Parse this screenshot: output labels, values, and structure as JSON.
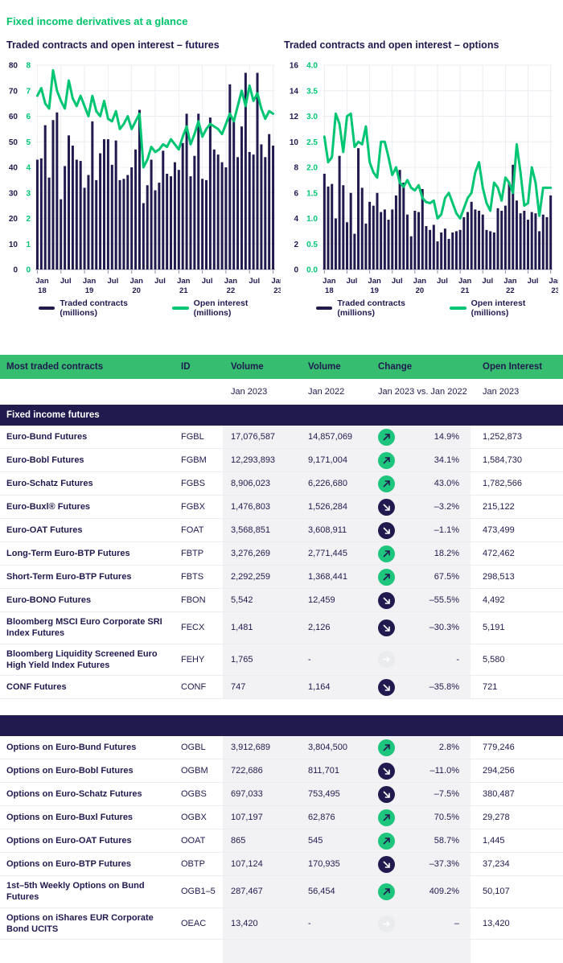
{
  "page": {
    "title": "Fixed income derivatives at a glance"
  },
  "colors": {
    "navy": "#201A4F",
    "green_line": "#00C573",
    "title_green": "#00C56B",
    "header_green": "#36BD70",
    "icon_up_green": "#1EC57C",
    "icon_flat_gray": "#E9EBEC",
    "row_band_gray": "#F2F2F4",
    "grid_gray": "#ECECF2"
  },
  "chart_data": [
    {
      "type": "bar",
      "title": "Traded contracts and open interest – futures",
      "x_months": "Jan 2018 – Jan 2023 (monthly)",
      "x_tick_labels": [
        {
          "i": 0,
          "l1": "Jan",
          "l2": "18"
        },
        {
          "i": 6,
          "l1": "Jul"
        },
        {
          "i": 12,
          "l1": "Jan",
          "l2": "19"
        },
        {
          "i": 18,
          "l1": "Jul"
        },
        {
          "i": 24,
          "l1": "Jan",
          "l2": "20"
        },
        {
          "i": 30,
          "l1": "Jul"
        },
        {
          "i": 36,
          "l1": "Jan",
          "l2": "21"
        },
        {
          "i": 42,
          "l1": "Jul"
        },
        {
          "i": 48,
          "l1": "Jan",
          "l2": "22"
        },
        {
          "i": 54,
          "l1": "Jul"
        },
        {
          "i": 60,
          "l1": "Jan",
          "l2": "23"
        }
      ],
      "left_axis": {
        "min": 0,
        "max": 80,
        "step": 10,
        "labels": [
          "0",
          "10",
          "20",
          "30",
          "40",
          "50",
          "60",
          "70",
          "80"
        ]
      },
      "right_axis": {
        "min": 0,
        "max": 8,
        "step": 1,
        "labels": [
          "0",
          "1",
          "2",
          "3",
          "4",
          "5",
          "6",
          "7",
          "8"
        ]
      },
      "series": [
        {
          "name": "Traded contracts (millions)",
          "kind": "bar",
          "axis": "left",
          "values": [
            43,
            43.5,
            56.5,
            36,
            58.5,
            61.5,
            27.5,
            40.5,
            52.5,
            48.5,
            43,
            42.5,
            32,
            37,
            58,
            35,
            45.5,
            51,
            51,
            41,
            50.5,
            35,
            35.5,
            37,
            40,
            47,
            62.5,
            26,
            33,
            43,
            31,
            34,
            46.5,
            37.5,
            36.5,
            42,
            39,
            49.5,
            61,
            36.5,
            44.5,
            61,
            35.5,
            35,
            59.5,
            47,
            45,
            42,
            40,
            72.5,
            58,
            44,
            56,
            77,
            46,
            45,
            77,
            49,
            44,
            53,
            48.5
          ]
        },
        {
          "name": "Open interest (millions)",
          "kind": "line",
          "axis": "right",
          "values": [
            6.8,
            7.1,
            6.5,
            6.3,
            7.8,
            7.0,
            6.6,
            6.3,
            7.4,
            6.7,
            6.4,
            6.8,
            6.4,
            6.0,
            6.8,
            6.2,
            6.0,
            6.6,
            5.9,
            5.8,
            6.2,
            5.5,
            5.7,
            6.0,
            5.5,
            5.8,
            6.1,
            4.0,
            4.3,
            4.8,
            4.6,
            4.7,
            4.9,
            4.8,
            5.1,
            4.9,
            4.7,
            5.2,
            5.6,
            4.9,
            5.3,
            5.8,
            5.2,
            5.5,
            5.7,
            5.6,
            5.5,
            5.3,
            5.7,
            6.1,
            5.8,
            6.4,
            7.0,
            6.4,
            7.2,
            6.6,
            6.9,
            6.3,
            5.9,
            6.2,
            6.1
          ]
        }
      ]
    },
    {
      "type": "bar",
      "title": "Traded contracts and open interest – options",
      "x_months": "Jan 2018 – Jan 2023 (monthly)",
      "x_tick_labels": [
        {
          "i": 0,
          "l1": "Jan",
          "l2": "18"
        },
        {
          "i": 6,
          "l1": "Jul"
        },
        {
          "i": 12,
          "l1": "Jan",
          "l2": "19"
        },
        {
          "i": 18,
          "l1": "Jul"
        },
        {
          "i": 24,
          "l1": "Jan",
          "l2": "20"
        },
        {
          "i": 30,
          "l1": "Jul"
        },
        {
          "i": 36,
          "l1": "Jan",
          "l2": "21"
        },
        {
          "i": 42,
          "l1": "Jul"
        },
        {
          "i": 48,
          "l1": "Jan",
          "l2": "22"
        },
        {
          "i": 54,
          "l1": "Jul"
        },
        {
          "i": 60,
          "l1": "Jan",
          "l2": "23"
        }
      ],
      "left_axis": {
        "min": 0,
        "max": 16,
        "step": 2,
        "labels": [
          "0",
          "2",
          "4",
          "6",
          "8",
          "10",
          "12",
          "14",
          "16"
        ]
      },
      "right_axis": {
        "min": 0,
        "max": 4,
        "step": 0.5,
        "labels": [
          "0.0",
          "0.5",
          "1.0",
          "1.5",
          "2.0",
          "2.5",
          "3.0",
          "3.5",
          "4.0"
        ]
      },
      "series": [
        {
          "name": "Traded contracts (millions)",
          "kind": "bar",
          "axis": "left",
          "values": [
            7.5,
            6.5,
            6.7,
            4.0,
            8.9,
            6.6,
            3.7,
            6.0,
            2.8,
            9.5,
            6.4,
            3.6,
            5.3,
            5.0,
            6.0,
            4.5,
            4.7,
            3.9,
            4.7,
            5.8,
            7.8,
            6.8,
            4.3,
            2.6,
            4.6,
            4.5,
            6.3,
            3.4,
            3.1,
            3.5,
            2.2,
            2.9,
            3.2,
            2.4,
            2.9,
            3.0,
            3.1,
            4.1,
            4.5,
            5.3,
            4.7,
            4.6,
            4.3,
            3.1,
            3.0,
            2.9,
            4.8,
            4.6,
            5.0,
            6.8,
            8.2,
            5.4,
            4.4,
            4.6,
            3.9,
            4.5,
            4.4,
            3.0,
            4.3,
            4.1,
            5.8
          ]
        },
        {
          "name": "Open interest (millions)",
          "kind": "line",
          "axis": "right",
          "values": [
            2.6,
            2.1,
            2.2,
            3.05,
            2.85,
            2.3,
            3.0,
            3.05,
            2.4,
            2.5,
            2.45,
            2.8,
            2.1,
            1.9,
            1.8,
            2.5,
            2.5,
            2.2,
            1.85,
            2.0,
            1.7,
            1.62,
            1.75,
            1.6,
            1.55,
            1.65,
            1.4,
            1.32,
            1.3,
            1.35,
            1.0,
            1.08,
            1.4,
            1.5,
            1.3,
            1.1,
            1.0,
            1.2,
            1.4,
            1.5,
            1.9,
            2.1,
            1.6,
            1.3,
            1.15,
            1.7,
            1.6,
            1.35,
            1.8,
            1.7,
            1.5,
            2.45,
            1.9,
            1.25,
            1.3,
            2.0,
            1.7,
            1.05,
            1.6,
            1.6,
            1.6
          ]
        }
      ]
    }
  ],
  "table": {
    "header": {
      "name": "Most traded contracts",
      "id": "ID",
      "vol1": "Volume",
      "vol2": "Volume",
      "change": "Change",
      "oi": "Open Interest"
    },
    "subheader": {
      "vol1": "Jan 2023",
      "vol2": "Jan 2022",
      "change": "Jan 2023 vs. Jan 2022",
      "oi": "Jan 2023"
    },
    "sections": [
      {
        "label": "Fixed income futures",
        "rows": [
          {
            "name": "Euro-Bund Futures",
            "id": "FGBL",
            "vol1": "17,076,587",
            "vol2": "14,857,069",
            "trend": "up",
            "change": "14.9%",
            "oi": "1,252,873"
          },
          {
            "name": "Euro-Bobl Futures",
            "id": "FGBM",
            "vol1": "12,293,893",
            "vol2": "9,171,004",
            "trend": "up",
            "change": "34.1%",
            "oi": "1,584,730"
          },
          {
            "name": "Euro-Schatz Futures",
            "id": "FGBS",
            "vol1": "8,906,023",
            "vol2": "6,226,680",
            "trend": "up",
            "change": "43.0%",
            "oi": "1,782,566"
          },
          {
            "name": "Euro-Buxl® Futures",
            "id": "FGBX",
            "vol1": "1,476,803",
            "vol2": "1,526,284",
            "trend": "down",
            "change": "–3.2%",
            "oi": "215,122"
          },
          {
            "name": "Euro-OAT Futures",
            "id": "FOAT",
            "vol1": "3,568,851",
            "vol2": "3,608,911",
            "trend": "down",
            "change": "–1.1%",
            "oi": "473,499"
          },
          {
            "name": "Long-Term Euro-BTP Futures",
            "id": "FBTP",
            "vol1": "3,276,269",
            "vol2": "2,771,445",
            "trend": "up",
            "change": "18.2%",
            "oi": "472,462"
          },
          {
            "name": "Short-Term Euro-BTP Futures",
            "id": "FBTS",
            "vol1": "2,292,259",
            "vol2": "1,368,441",
            "trend": "up",
            "change": "67.5%",
            "oi": "298,513"
          },
          {
            "name": "Euro-BONO Futures",
            "id": "FBON",
            "vol1": "5,542",
            "vol2": "12,459",
            "trend": "down",
            "change": "–55.5%",
            "oi": "4,492"
          },
          {
            "name": "Bloomberg MSCI Euro Corporate SRI Index Futures",
            "id": "FECX",
            "vol1": "1,481",
            "vol2": "2,126",
            "trend": "down",
            "change": "–30.3%",
            "oi": "5,191"
          },
          {
            "name": "Bloomberg Liquidity Screened Euro High Yield Index Futures",
            "id": "FEHY",
            "vol1": "1,765",
            "vol2": "-",
            "trend": "flat",
            "change": "-",
            "oi": "5,580"
          },
          {
            "name": "CONF Futures",
            "id": "CONF",
            "vol1": "747",
            "vol2": "1,164",
            "trend": "down",
            "change": "–35.8%",
            "oi": "721"
          }
        ]
      },
      {
        "label": "",
        "rows": [
          {
            "name": "Options on Euro-Bund Futures",
            "id": "OGBL",
            "vol1": "3,912,689",
            "vol2": "3,804,500",
            "trend": "up",
            "change": "2.8%",
            "oi": "779,246"
          },
          {
            "name": "Options on Euro-Bobl Futures",
            "id": "OGBM",
            "vol1": "722,686",
            "vol2": "811,701",
            "trend": "down",
            "change": "–11.0%",
            "oi": "294,256"
          },
          {
            "name": "Options on Euro-Schatz Futures",
            "id": "OGBS",
            "vol1": "697,033",
            "vol2": "753,495",
            "trend": "down",
            "change": "–7.5%",
            "oi": "380,487"
          },
          {
            "name": "Options on Euro-Buxl Futures",
            "id": "OGBX",
            "vol1": "107,197",
            "vol2": "62,876",
            "trend": "up",
            "change": "70.5%",
            "oi": "29,278"
          },
          {
            "name": "Options on Euro-OAT Futures",
            "id": "OOAT",
            "vol1": "865",
            "vol2": "545",
            "trend": "up",
            "change": "58.7%",
            "oi": "1,445"
          },
          {
            "name": "Options on Euro-BTP Futures",
            "id": "OBTP",
            "vol1": "107,124",
            "vol2": "170,935",
            "trend": "down",
            "change": "–37.3%",
            "oi": "37,234"
          },
          {
            "name": "1st–5th Weekly Options on Bund Futures",
            "id": "OGB1–5",
            "vol1": "287,467",
            "vol2": "56,454",
            "trend": "up",
            "change": "409.2%",
            "oi": "50,107"
          },
          {
            "name": "Options on iShares EUR Corporate Bond UCITS",
            "id": "OEAC",
            "vol1": "13,420",
            "vol2": "-",
            "trend": "flat",
            "change": "–",
            "oi": "13,420"
          }
        ]
      }
    ]
  }
}
